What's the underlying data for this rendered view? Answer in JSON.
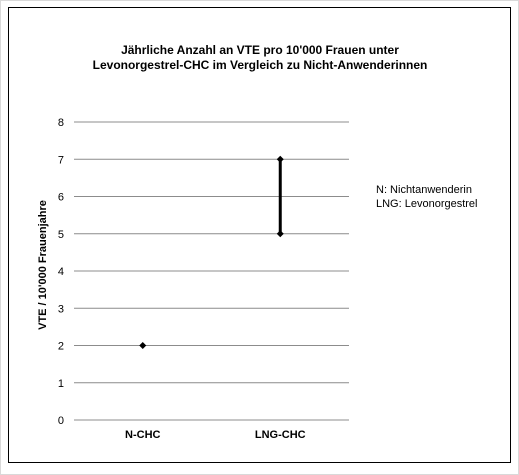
{
  "chart_data": {
    "type": "scatter",
    "title_lines": [
      "Jährliche Anzahl an VTE pro 10'000 Frauen unter",
      "Levonorgestrel-CHC  im Vergleich zu Nicht-Anwenderinnen"
    ],
    "xlabel": "",
    "ylabel": "VTE / 10'000 Frauenjahre",
    "categories": [
      "N-CHC",
      "LNG-CHC"
    ],
    "ylim": [
      0,
      8
    ],
    "yticks": [
      "0",
      "1",
      "2",
      "3",
      "4",
      "5",
      "6",
      "7",
      "8"
    ],
    "grid": true,
    "series": [
      {
        "values": [
          {
            "low": 2,
            "high": 2
          },
          {
            "low": 5,
            "high": 7
          }
        ]
      }
    ],
    "legend_notes": [
      "N: Nichtanwenderin",
      "LNG: Levonorgestrel"
    ],
    "legend_position": "right",
    "colors": {
      "marker": "#000000",
      "grid": "#8c8c8c",
      "axis": "#8c8c8c"
    }
  }
}
